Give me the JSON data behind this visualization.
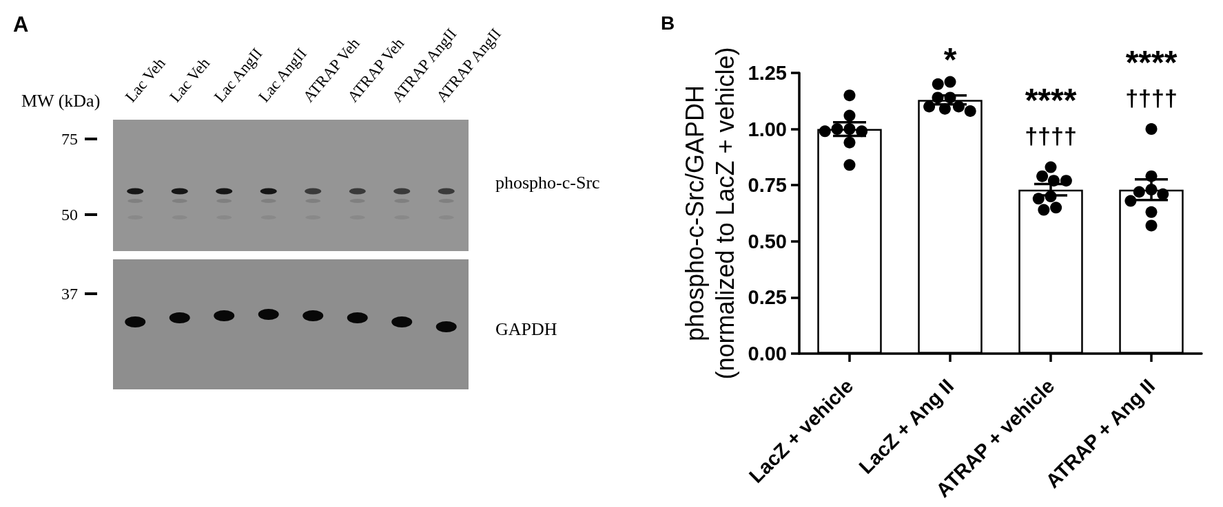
{
  "chart_data": [
    {
      "type": "other",
      "title": "A",
      "annotations": [
        "Lac Veh",
        "Lac Veh",
        "Lac AngII",
        "Lac AngII",
        "ATRAP Veh",
        "ATRAP Veh",
        "ATRAP AngII",
        "ATRAP AngII",
        "MW (kDa)",
        "75",
        "50",
        "37",
        "phospho-c-Src",
        "GAPDH"
      ]
    },
    {
      "type": "bar",
      "title": "B",
      "ylabel": "phospho-c-Src/GAPDH\n(normalized to LacZ + vehicle)",
      "categories": [
        "LacZ + vehicle",
        "LacZ + Ang II",
        "ATRAP + vehicle",
        "ATRAP + Ang II"
      ],
      "series": [
        {
          "type": "bar",
          "color": "#ffffff",
          "values": [
            1.0,
            1.13,
            0.73,
            0.73
          ],
          "errors": [
            0.03,
            0.02,
            0.025,
            0.046
          ]
        },
        {
          "type": "scatter",
          "color": "#000000",
          "x": [
            "LacZ + vehicle",
            "LacZ + vehicle",
            "LacZ + vehicle",
            "LacZ + vehicle",
            "LacZ + vehicle",
            "LacZ + vehicle",
            "LacZ + vehicle",
            "LacZ + vehicle",
            "LacZ + Ang II",
            "LacZ + Ang II",
            "LacZ + Ang II",
            "LacZ + Ang II",
            "LacZ + Ang II",
            "LacZ + Ang II",
            "LacZ + Ang II",
            "LacZ + Ang II",
            "ATRAP + vehicle",
            "ATRAP + vehicle",
            "ATRAP + vehicle",
            "ATRAP + vehicle",
            "ATRAP + vehicle",
            "ATRAP + vehicle",
            "ATRAP + vehicle",
            "ATRAP + vehicle",
            "ATRAP + Ang II",
            "ATRAP + Ang II",
            "ATRAP + Ang II",
            "ATRAP + Ang II",
            "ATRAP + Ang II",
            "ATRAP + Ang II",
            "ATRAP + Ang II",
            "ATRAP + Ang II"
          ],
          "values": [
            1.15,
            1.06,
            1.0,
            0.99,
            0.99,
            1.0,
            0.94,
            0.84,
            1.21,
            1.2,
            1.1,
            1.08,
            1.09,
            1.1,
            1.14,
            1.14,
            0.83,
            0.77,
            0.77,
            0.79,
            0.69,
            0.7,
            0.64,
            0.65,
            1.0,
            0.73,
            0.71,
            0.79,
            0.72,
            0.68,
            0.63,
            0.57
          ]
        }
      ],
      "ylim": [
        0,
        1.25
      ],
      "yticks": [
        {
          "value": 0,
          "label": "0.00"
        },
        0.25,
        {
          "value": 0.5,
          "label": "0.50"
        },
        0.75,
        {
          "value": 1,
          "label": "1.00"
        },
        1.25
      ],
      "marker": "circle",
      "annotations": [
        "*",
        "****",
        "††††",
        "****",
        "††††"
      ]
    }
  ]
}
